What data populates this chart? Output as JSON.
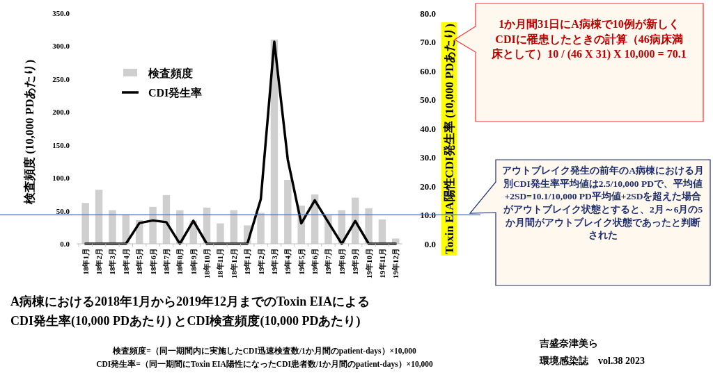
{
  "chart_data": {
    "type": "bar",
    "title": "A病棟における2018年1月から2019年12月までのToxin EIAによる",
    "subtitle": "CDI発生率(10,000 PDあたり) とCDI検査頻度(10,000 PDあたり)",
    "ylabel": "検査頻度 (10,000 PDあたり)",
    "y2label": "Toxin EIA陽性CDI発生率 (10,000 PDあたり)",
    "categories": [
      "18年1月",
      "18年2月",
      "18年3月",
      "18年4月",
      "18年5月",
      "18年6月",
      "18年7月",
      "18年8月",
      "18年9月",
      "18年10月",
      "18年11月",
      "18年12月",
      "19年1月",
      "19年2月",
      "19年3月",
      "19年4月",
      "19年5月",
      "19年6月",
      "19年7月",
      "19年8月",
      "19年9月",
      "19年10月",
      "19年11月",
      "19年12月"
    ],
    "series": [
      {
        "name": "検査頻度",
        "color": "#d0cfd0",
        "values": [
          62,
          82,
          51,
          44,
          36,
          56,
          74,
          51,
          35,
          55,
          31,
          51,
          28,
          47,
          310,
          97,
          58,
          75,
          44,
          51,
          70,
          54,
          37,
          8
        ]
      },
      {
        "name": "CDI発生率",
        "type": "line",
        "axis": "y2",
        "color": "#000000",
        "values": [
          0,
          0,
          0,
          0,
          7.2,
          8.1,
          7.5,
          0,
          8,
          0,
          0,
          0,
          0,
          15.5,
          70.1,
          29.2,
          7.1,
          15.1,
          7.5,
          0,
          7.9,
          0,
          0,
          0
        ]
      }
    ],
    "ylim": [
      0,
      350
    ],
    "yticks": [
      {
        "value": 0,
        "label": "0.0"
      },
      {
        "value": 50,
        "label": "50.0"
      },
      {
        "value": 100,
        "label": "100.0"
      },
      {
        "value": 150,
        "label": "150.0"
      },
      {
        "value": 200,
        "label": "200.0"
      },
      {
        "value": 250,
        "label": "250.0"
      },
      {
        "value": 300,
        "label": "300.0"
      },
      {
        "value": 350,
        "label": "350.0"
      }
    ],
    "y2lim": [
      0,
      80
    ],
    "y2ticks": [
      {
        "value": 0,
        "label": "0.0"
      },
      {
        "value": 10,
        "label": "10.0"
      },
      {
        "value": 20,
        "label": "20.0"
      },
      {
        "value": 30,
        "label": "30.0"
      },
      {
        "value": 40,
        "label": "40.0"
      },
      {
        "value": 50,
        "label": "50.0"
      },
      {
        "value": 60,
        "label": "60.0"
      },
      {
        "value": 70,
        "label": "70.0"
      },
      {
        "value": 80,
        "label": "80.0"
      }
    ],
    "ref_lines": [
      {
        "axis": "y2",
        "value": 10.1,
        "color": "#4472c4"
      }
    ],
    "legend": "top left",
    "marker": "none",
    "line_style": "solid",
    "grid": false,
    "annotations": [
      "1か月間31日にA病棟で10例が新しくCDIに罹患したときの計算（46病床満床として）10 / (46 X 31) X 10,000 = 70.1",
      "アウトブレイク発生の前年のA病棟における月別CDI発生率平均値は2.5/10,000 PDで、平均値+2SD=10.1/10,000 PD平均値+2SDを超えた場合がアウトブレイク状態とすると、2月～6月の5か月間がアウトブレイク状態であったと判断された",
      "検査頻度=（同一期間内に実施したCDI迅速検査数/1か月間のpatient-days）×10,000",
      "CDI発生率=（同一期間にToxin EIA陽性になったCDI患者数/1か月間のpatient-days）×10,000",
      "吉盛奈津美ら",
      "環境感染誌　vol.38 2023"
    ]
  }
}
